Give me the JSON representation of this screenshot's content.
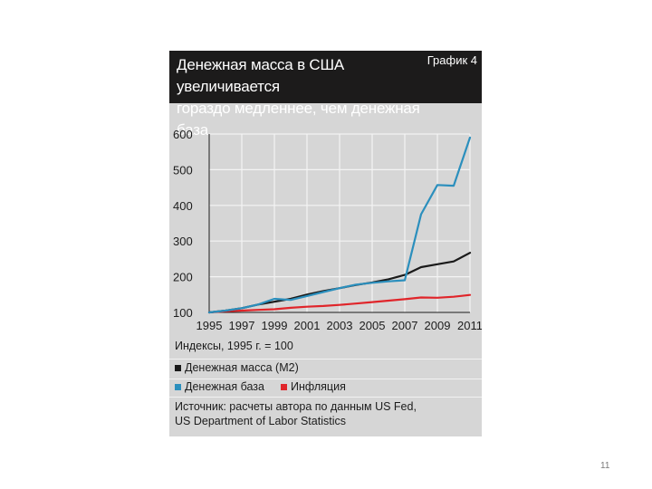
{
  "header": {
    "title_line1": "Денежная масса в США увеличивается",
    "title_line2": "гораздо медленнее, чем денежная база",
    "tag": "График 4"
  },
  "chart_data": {
    "type": "line",
    "x": [
      1995,
      1996,
      1997,
      1998,
      1999,
      2000,
      2001,
      2002,
      2003,
      2004,
      2005,
      2006,
      2007,
      2008,
      2009,
      2010,
      2011
    ],
    "x_tick_labels": [
      "1995",
      "1997",
      "1999",
      "2001",
      "2003",
      "2005",
      "2007",
      "2009",
      "2011"
    ],
    "y_tick_labels": [
      "100",
      "200",
      "300",
      "400",
      "500",
      "600"
    ],
    "ylim": [
      100,
      600
    ],
    "xlim": [
      1995,
      2011
    ],
    "grid": true,
    "series": [
      {
        "name": "Денежная масса (M2)",
        "color": "#1a1a1a",
        "values": [
          100,
          105,
          112,
          122,
          130,
          138,
          150,
          160,
          168,
          177,
          184,
          193,
          205,
          227,
          235,
          243,
          267
        ]
      },
      {
        "name": "Денежная база",
        "color": "#2b8fbd",
        "values": [
          100,
          105,
          112,
          122,
          138,
          135,
          146,
          157,
          168,
          178,
          183,
          187,
          190,
          375,
          457,
          455,
          590
        ]
      },
      {
        "name": "Инфляция",
        "color": "#e0252a",
        "values": [
          100,
          103,
          105,
          107,
          109,
          113,
          116,
          118,
          121,
          125,
          129,
          133,
          137,
          142,
          141,
          144,
          149
        ]
      }
    ],
    "index_note": "Индексы, 1995 г. = 100"
  },
  "source": {
    "line1": "Источник: расчеты автора по данным US Fed,",
    "line2": "US Department of Labor Statistics"
  },
  "page_number": "11"
}
